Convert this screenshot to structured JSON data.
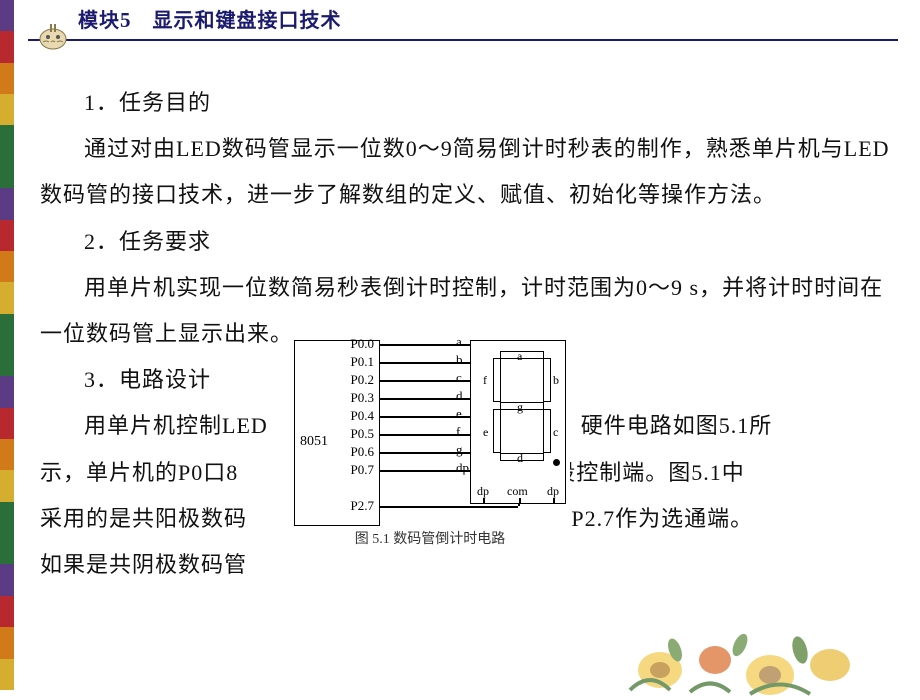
{
  "stripe_colors": [
    "#5b3b83",
    "#b8292f",
    "#d07a1a",
    "#d5ad2f",
    "#2a6e3a",
    "#2a6e3a",
    "#5b3b83",
    "#b8292f",
    "#d07a1a",
    "#d5ad2f",
    "#2a6e3a",
    "#2a6e3a",
    "#5b3b83",
    "#b8292f",
    "#d07a1a",
    "#d5ad2f",
    "#2a6e3a",
    "#2a6e3a",
    "#5b3b83",
    "#b8292f",
    "#d07a1a",
    "#d5ad2f"
  ],
  "header": {
    "module_prefix": "模块",
    "module_number": "5",
    "title": "显示和键盘接口技术"
  },
  "body": {
    "h1": "1．任务目的",
    "p1": "通过对由LED数码管显示一位数0～9简易倒计时秒表的制作，熟悉单片机与LED数码管的接口技术，进一步了解数组的定义、赋值、初始化等操作方法。",
    "h2": "2．任务要求",
    "p2": "用单片机实现一位数简易秒表倒计时控制，计时范围为0～9 s，并将计时时间在一位数码管上显示出来。",
    "h3": "3．电路设计",
    "p3a": "用单片机控制LED",
    "p3b": "硬件电路如图5.1所",
    "p4a": "示，单片机的P0口8",
    "p4b": "段控制端。图5.1中",
    "p5a": "采用的是共阳极数码",
    "p5b": ")接P2.7作为选通端。",
    "p6a": "如果是共阴极数码管"
  },
  "diagram": {
    "chip": "8051",
    "pins": [
      "P0.0",
      "P0.1",
      "P0.2",
      "P0.3",
      "P0.4",
      "P0.5",
      "P0.6",
      "P0.7",
      "",
      "P2.7"
    ],
    "seg_letters": [
      "a",
      "b",
      "c",
      "d",
      "e",
      "f",
      "g",
      "dp"
    ],
    "inner_labels": {
      "a": "a",
      "b": "b",
      "c": "c",
      "d": "d",
      "e": "e",
      "f": "f",
      "g": "g"
    },
    "bottom_labels": {
      "dp": "dp",
      "com": "com",
      "dp2": "dp"
    },
    "caption": "图 5.1  数码管倒计时电路"
  }
}
